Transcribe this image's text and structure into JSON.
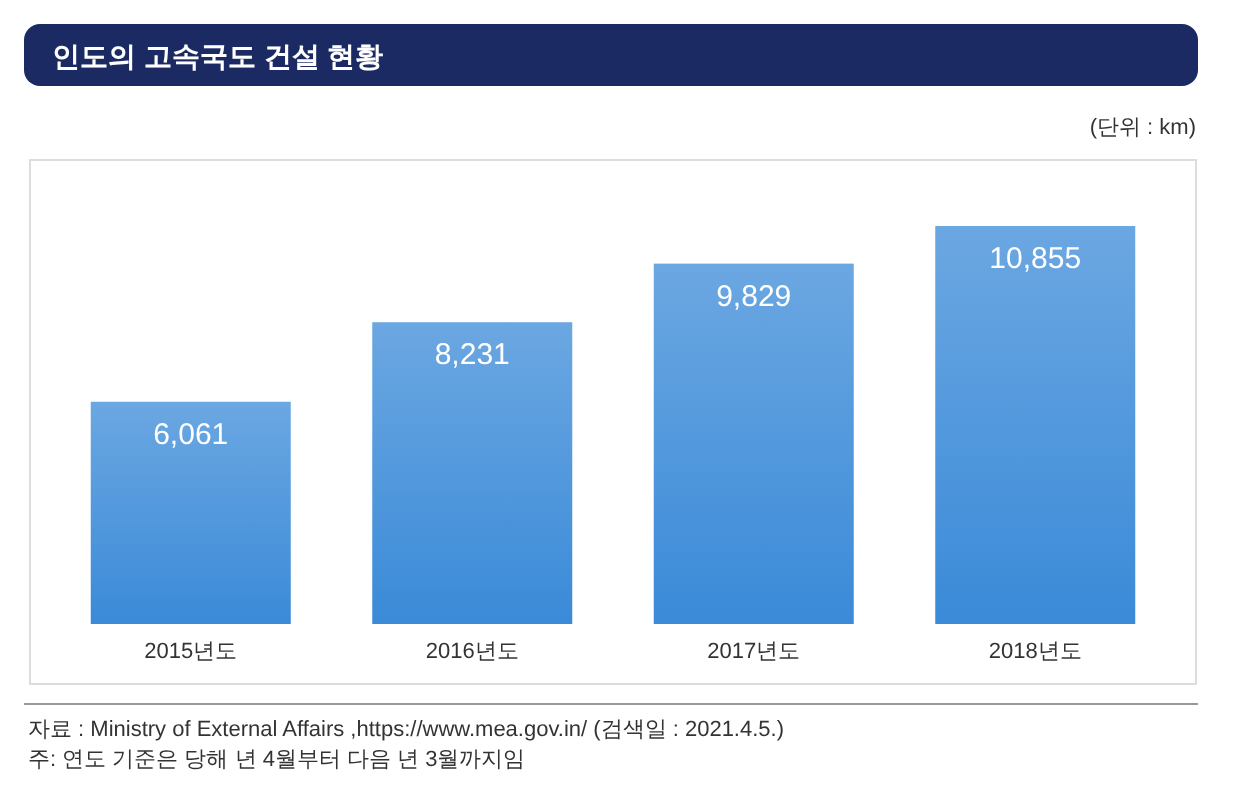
{
  "chart_data": {
    "type": "bar",
    "title": "인도의 고속국도 건설 현황",
    "categories": [
      "2015년도",
      "2016년도",
      "2017년도",
      "2018년도"
    ],
    "values": [
      6061,
      8231,
      9829,
      10855
    ],
    "value_labels": [
      "6,061",
      "8,231",
      "9,829",
      "10,855"
    ],
    "color": "#3a8ad8",
    "annotations": [
      "(단위 : km)",
      "자료 : Ministry of External Affairs ,https://www.mea.gov.in/ (검색일 : 2021.4.5.)",
      "주: 연도 기준은 당해 년 4월부터 다음 년 3월까지임"
    ]
  }
}
